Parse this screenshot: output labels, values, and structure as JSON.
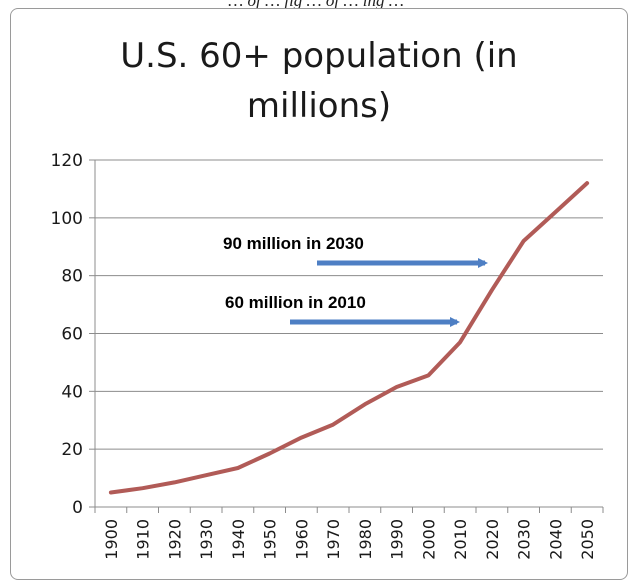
{
  "caption_fragment": "… of … fig … of … ing …",
  "chart_data": {
    "type": "line",
    "title_lines": [
      "U.S. 60+ population (in",
      "millions)"
    ],
    "xlabel": "",
    "ylabel": "",
    "ylim": [
      0,
      120
    ],
    "yticks": [
      "0",
      "20",
      "40",
      "60",
      "80",
      "100",
      "120"
    ],
    "x": [
      1900,
      1910,
      1920,
      1930,
      1940,
      1950,
      1960,
      1970,
      1980,
      1990,
      2000,
      2010,
      2020,
      2030,
      2040,
      2050
    ],
    "x_tick_labels": [
      "1900",
      "1910",
      "1920",
      "1930",
      "1940",
      "1950",
      "1960",
      "1970",
      "1980",
      "1990",
      "2000",
      "2010",
      "2020",
      "2030",
      "2040",
      "2050"
    ],
    "series": [
      {
        "values": [
          5,
          6.5,
          8.5,
          11,
          13.5,
          18.5,
          24,
          28.5,
          35.5,
          41.5,
          45.5,
          57,
          75,
          92,
          102,
          112
        ],
        "color": "#b15b57"
      }
    ],
    "grid": "horizontal",
    "legend": "none",
    "annotations": [
      {
        "text": "90 million in 2030",
        "x": 2020,
        "y": 85
      },
      {
        "text": "60 million in 2010",
        "x": 2010,
        "y": 65
      }
    ],
    "arrow_color": "#4e7fc4"
  }
}
